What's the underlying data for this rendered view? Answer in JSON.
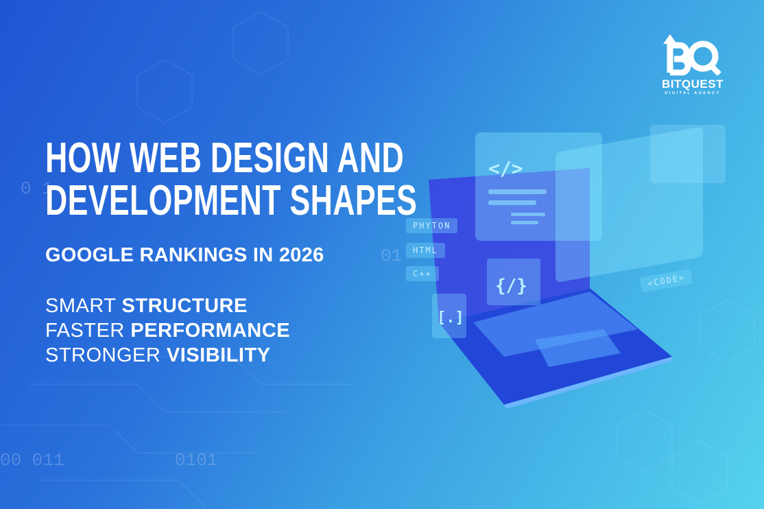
{
  "headline": {
    "line1": "HOW WEB DESIGN AND",
    "line2": "DEVELOPMENT SHAPES",
    "subtitle": "GOOGLE RANKINGS IN 2026"
  },
  "taglines": [
    {
      "light": "SMART ",
      "bold": "STRUCTURE"
    },
    {
      "light": "FASTER ",
      "bold": "PERFORMANCE"
    },
    {
      "light": "STRONGER ",
      "bold": "VISIBILITY"
    }
  ],
  "logo": {
    "mark": "BQ",
    "name": "BITQUEST",
    "tagline": "DIGITAL AGENCY"
  },
  "illustration": {
    "chips": [
      "PHYTON",
      "HTML",
      "C++",
      "<CODE>"
    ],
    "symbols": [
      "</>",
      "{/}",
      "[.]"
    ],
    "binary": [
      "0 1",
      "00  011",
      "0101",
      "01"
    ]
  },
  "colors": {
    "bg_left": "#1f55d2",
    "bg_right": "#55d2ee",
    "text": "#ffffff"
  }
}
